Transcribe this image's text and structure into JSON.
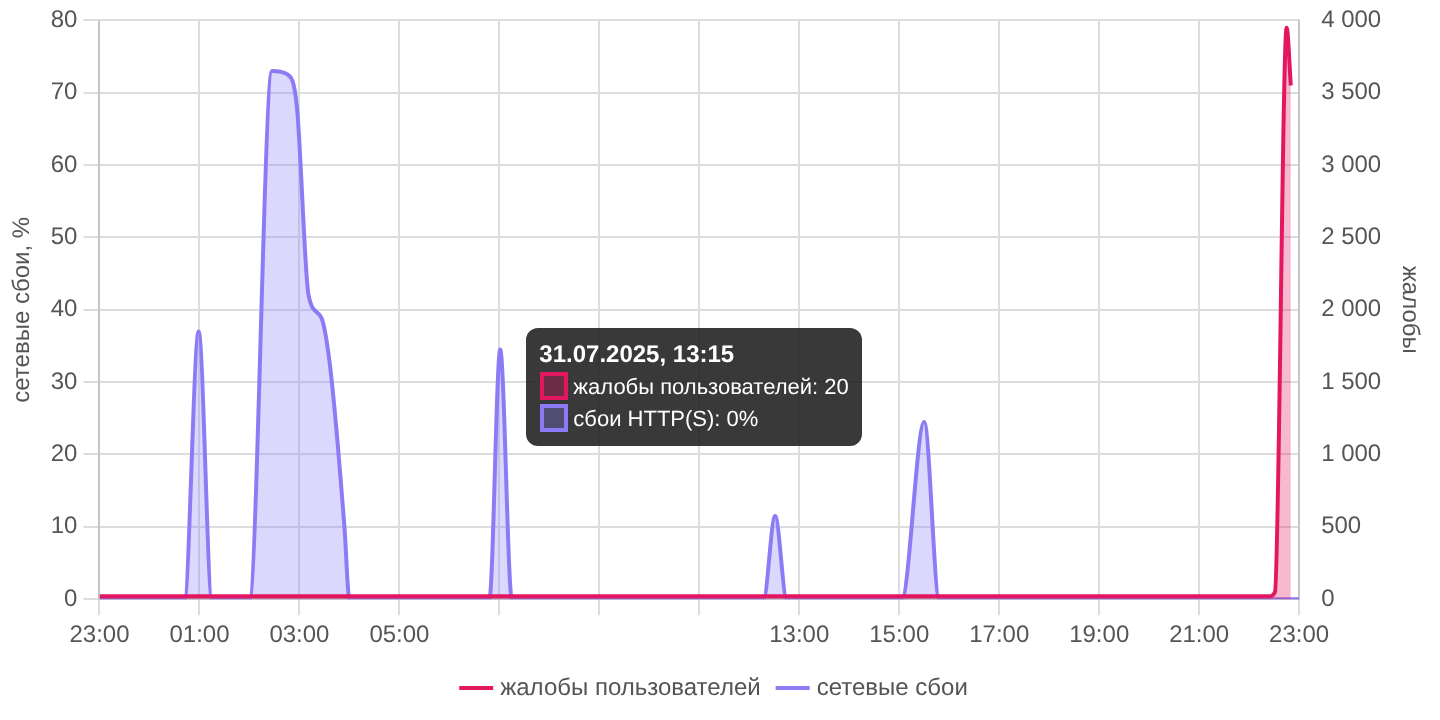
{
  "chart_data": {
    "type": "area",
    "ylabel": "сетевые сбои, %",
    "y2label": "жалобы",
    "xlim": [
      "2025-07-30T23:00",
      "2025-07-31T23:00"
    ],
    "xticks": [
      {
        "value": "2025-07-30T23:00",
        "label": "23:00"
      },
      {
        "value": "2025-07-31T01:00",
        "label": "01:00"
      },
      {
        "value": "2025-07-31T03:00",
        "label": "03:00"
      },
      {
        "value": "2025-07-31T05:00",
        "label": "05:00"
      },
      {
        "value": "2025-07-31T07:00",
        "label": null
      },
      {
        "value": "2025-07-31T09:00",
        "label": null
      },
      {
        "value": "2025-07-31T11:00",
        "label": null
      },
      {
        "value": "2025-07-31T13:00",
        "label": "13:00"
      },
      {
        "value": "2025-07-31T15:00",
        "label": "15:00"
      },
      {
        "value": "2025-07-31T17:00",
        "label": "17:00"
      },
      {
        "value": "2025-07-31T19:00",
        "label": "19:00"
      },
      {
        "value": "2025-07-31T21:00",
        "label": "21:00"
      },
      {
        "value": "2025-07-31T23:00",
        "label": "23:00"
      }
    ],
    "ylim": [
      0,
      80
    ],
    "yticks": [
      0,
      10,
      20,
      30,
      40,
      50,
      60,
      70,
      80
    ],
    "y2lim": [
      0,
      4000
    ],
    "y2ticks": [
      0,
      {
        "value": 500,
        "label": "500"
      },
      {
        "value": 1000,
        "label": "1 000"
      },
      {
        "value": 1500,
        "label": "1 500"
      },
      {
        "value": 2000,
        "label": "2 000"
      },
      {
        "value": 2500,
        "label": "2 500"
      },
      {
        "value": 3000,
        "label": "3 000"
      },
      {
        "value": 3500,
        "label": "3 500"
      },
      {
        "value": 4000,
        "label": "4 000"
      }
    ],
    "grid": true,
    "legend": "bottom",
    "marker": "none",
    "series": [
      {
        "name": "жалобы пользователей",
        "color": "#e3175f",
        "axis": "y2",
        "x": [
          "2025-07-30T23:00",
          "2025-07-31T01:00",
          "2025-07-31T03:00",
          "2025-07-31T05:00",
          "2025-07-31T07:00",
          "2025-07-31T09:00",
          "2025-07-31T11:00",
          "2025-07-31T13:15",
          "2025-07-31T15:00",
          "2025-07-31T17:00",
          "2025-07-31T19:00",
          "2025-07-31T21:00",
          "2025-07-31T22:24",
          "2025-07-31T22:31",
          "2025-07-31T22:45",
          "2025-07-31T22:50"
        ],
        "values": [
          20,
          20,
          20,
          20,
          20,
          20,
          20,
          20,
          20,
          20,
          20,
          20,
          20,
          50,
          3950,
          3550
        ]
      },
      {
        "name": "сетевые сбои",
        "color": "#8b7cf6",
        "axis": "y",
        "x": [
          "2025-07-30T23:00",
          "2025-07-31T00:42",
          "2025-07-31T00:59",
          "2025-07-31T01:15",
          "2025-07-31T02:00",
          "2025-07-31T02:27",
          "2025-07-31T02:46",
          "2025-07-31T02:57",
          "2025-07-31T03:11",
          "2025-07-31T03:26",
          "2025-07-31T03:37",
          "2025-07-31T03:54",
          "2025-07-31T04:00",
          "2025-07-31T06:48",
          "2025-07-31T07:01",
          "2025-07-31T07:15",
          "2025-07-31T12:17",
          "2025-07-31T12:31",
          "2025-07-31T12:45",
          "2025-07-31T15:03",
          "2025-07-31T15:30",
          "2025-07-31T15:48",
          "2025-07-31T23:00"
        ],
        "values": [
          0,
          0,
          37,
          0,
          0,
          73,
          72.5,
          68,
          42,
          39,
          32,
          10,
          0,
          0,
          34.5,
          0,
          0,
          11.5,
          0,
          0,
          24.5,
          0,
          0
        ]
      }
    ],
    "annotations": [
      "31.07.2025, 13:15",
      "жалобы пользователей: 20",
      "сбои HTTP(S): 0%"
    ]
  }
}
